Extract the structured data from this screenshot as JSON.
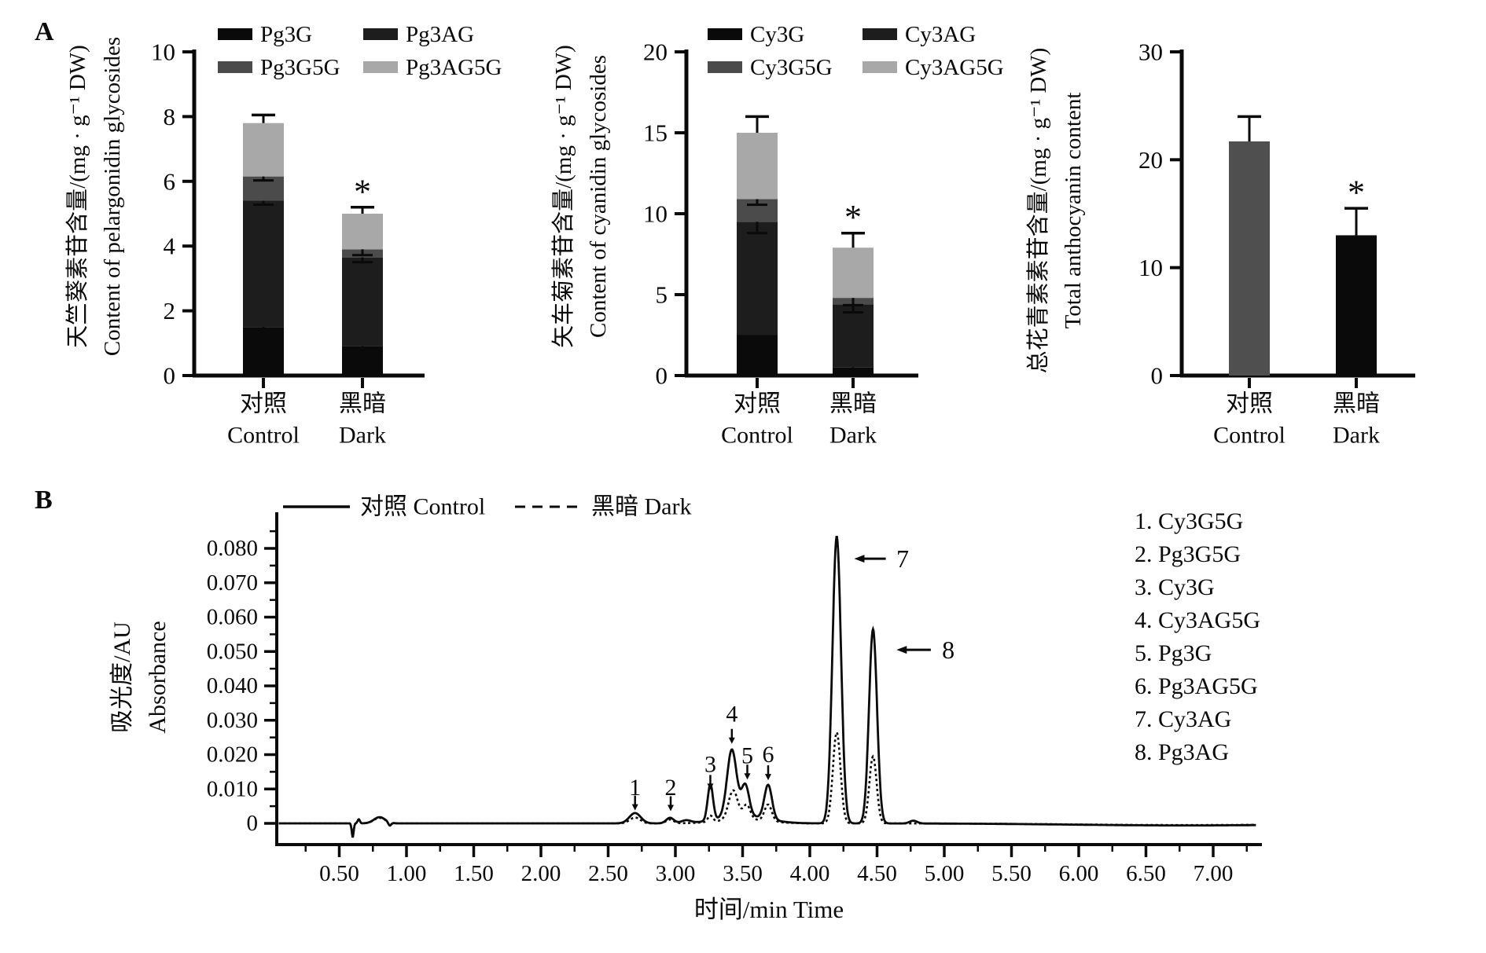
{
  "panel_a": {
    "label": "A"
  },
  "panel_b": {
    "label": "B"
  },
  "chart_data": [
    {
      "id": "pelargonidin-glycosides",
      "type": "bar",
      "stacked": true,
      "ylabel_zh": "天竺葵素苷含量/(mg · g⁻¹ DW)",
      "ylabel_en": "Content of pelargonidin glycosides",
      "categories": [
        {
          "zh": "对照",
          "en": "Control"
        },
        {
          "zh": "黑暗",
          "en": "Dark"
        }
      ],
      "ylim": [
        0,
        10
      ],
      "yticks": [
        0,
        2,
        4,
        6,
        8,
        10
      ],
      "legend_position": "top",
      "series": [
        {
          "name": "Pg3G",
          "color": "#0a0a0a",
          "values": [
            1.5,
            0.9
          ],
          "errors": [
            0.1,
            0.15
          ]
        },
        {
          "name": "Pg3AG",
          "color": "#1d1d1d",
          "values": [
            3.9,
            2.75
          ],
          "errors": [
            0.12,
            0.15
          ]
        },
        {
          "name": "Pg3G5G",
          "color": "#4b4b4b",
          "values": [
            0.75,
            0.25
          ],
          "errors": [
            0.12,
            0.18
          ]
        },
        {
          "name": "Pg3AG5G",
          "color": "#a8a8a8",
          "values": [
            1.65,
            1.1
          ],
          "errors": [
            0.25,
            0.2
          ]
        }
      ],
      "significance": [
        "",
        "*"
      ]
    },
    {
      "id": "cyanidin-glycosides",
      "type": "bar",
      "stacked": true,
      "ylabel_zh": "矢车菊素苷含量/(mg · g⁻¹ DW)",
      "ylabel_en": "Content of cyanidin glycosides",
      "categories": [
        {
          "zh": "对照",
          "en": "Control"
        },
        {
          "zh": "黑暗",
          "en": "Dark"
        }
      ],
      "ylim": [
        0,
        20
      ],
      "yticks": [
        0,
        5,
        10,
        15,
        20
      ],
      "legend_position": "top",
      "series": [
        {
          "name": "Cy3G",
          "color": "#0a0a0a",
          "values": [
            2.5,
            0.5
          ],
          "errors": [
            0.15,
            0.1
          ]
        },
        {
          "name": "Cy3AG",
          "color": "#1d1d1d",
          "values": [
            7.0,
            3.9
          ],
          "errors": [
            0.7,
            0.5
          ]
        },
        {
          "name": "Cy3G5G",
          "color": "#4b4b4b",
          "values": [
            1.4,
            0.4
          ],
          "errors": [
            0.35,
            0.45
          ]
        },
        {
          "name": "Cy3AG5G",
          "color": "#a8a8a8",
          "values": [
            4.1,
            3.1
          ],
          "errors": [
            1.0,
            0.9
          ]
        }
      ],
      "significance": [
        "",
        "*"
      ]
    },
    {
      "id": "total-anthocyanin",
      "type": "bar",
      "stacked": false,
      "ylabel_zh": "总花青素素苷含量/(mg · g⁻¹ DW)",
      "ylabel_en": "Total anthocyanin content",
      "categories": [
        {
          "zh": "对照",
          "en": "Control"
        },
        {
          "zh": "黑暗",
          "en": "Dark"
        }
      ],
      "ylim": [
        0,
        30
      ],
      "yticks": [
        0,
        10,
        20,
        30
      ],
      "legend_position": "none",
      "series": [
        {
          "name": "Total anthocyanin",
          "colors": [
            "#4f4f4f",
            "#0a0a0a"
          ],
          "values": [
            21.7,
            13.0
          ],
          "errors": [
            2.3,
            2.5
          ]
        }
      ],
      "significance": [
        "",
        "*"
      ]
    },
    {
      "id": "hplc-chromatogram",
      "type": "line",
      "xlabel": "时间/min Time",
      "ylabel_zh": "吸光度/AU",
      "ylabel_en": "Absorbance",
      "xlim": [
        0,
        7.35
      ],
      "ylim": [
        -0.005,
        0.09
      ],
      "xticks": [
        "0.50",
        "1.00",
        "1.50",
        "2.00",
        "2.50",
        "3.00",
        "3.50",
        "4.00",
        "4.50",
        "5.00",
        "5.50",
        "6.00",
        "6.50",
        "7.00"
      ],
      "ytick_labels": [
        "0",
        "0.010",
        "0.020",
        "0.030",
        "0.040",
        "0.050",
        "0.060",
        "0.070",
        "0.080"
      ],
      "legend": [
        {
          "label": "对照 Control",
          "style": "solid"
        },
        {
          "label": "黑暗 Dark",
          "style": "dashed"
        }
      ],
      "series": [
        {
          "name": "黑暗 Dark",
          "style": "dashed",
          "peaks": [
            [
              0.6,
              -0.0038,
              0.01
            ],
            [
              0.645,
              0.0011,
              0.012
            ],
            [
              0.8,
              0.0016,
              0.06
            ],
            [
              0.875,
              -0.0009,
              0.015
            ],
            [
              2.7,
              0.0017,
              0.055
            ],
            [
              2.96,
              0.0011,
              0.04
            ],
            [
              3.5,
              0.0012,
              0.25
            ],
            [
              3.26,
              0.0018,
              0.026
            ],
            [
              3.43,
              0.0085,
              0.048
            ],
            [
              3.53,
              0.0042,
              0.038
            ],
            [
              3.69,
              0.0048,
              0.038
            ],
            [
              4.2,
              0.0265,
              0.04
            ],
            [
              4.47,
              0.0195,
              0.038
            ],
            [
              6.8,
              -0.0005,
              1.2
            ]
          ]
        },
        {
          "name": "对照 Control",
          "style": "solid",
          "peaks": [
            [
              0.6,
              -0.004,
              0.01
            ],
            [
              0.645,
              0.0012,
              0.012
            ],
            [
              0.8,
              0.0018,
              0.06
            ],
            [
              0.875,
              -0.001,
              0.015
            ],
            [
              2.7,
              0.003,
              0.06
            ],
            [
              2.96,
              0.0016,
              0.04
            ],
            [
              3.08,
              0.0008,
              0.05
            ],
            [
              3.5,
              0.0022,
              0.25
            ],
            [
              3.26,
              0.0105,
              0.028
            ],
            [
              3.42,
              0.0195,
              0.05
            ],
            [
              3.52,
              0.009,
              0.04
            ],
            [
              3.69,
              0.01,
              0.04
            ],
            [
              4.2,
              0.0835,
              0.045
            ],
            [
              4.47,
              0.0565,
              0.042
            ],
            [
              4.77,
              0.0008,
              0.04
            ],
            [
              6.8,
              -0.0006,
              1.2
            ]
          ]
        }
      ],
      "peak_markers": [
        {
          "n": "1",
          "t": 2.7,
          "label_v": 0.0104,
          "tip_v": 0.0042
        },
        {
          "n": "2",
          "t": 2.965,
          "label_v": 0.0104,
          "tip_v": 0.004
        },
        {
          "n": "3",
          "t": 3.26,
          "label_v": 0.0172,
          "tip_v": 0.0102
        },
        {
          "n": "4",
          "t": 3.42,
          "label_v": 0.0318,
          "tip_v": 0.0236
        },
        {
          "n": "5",
          "t": 3.535,
          "label_v": 0.0197,
          "tip_v": 0.0132
        },
        {
          "n": "6",
          "t": 3.69,
          "label_v": 0.02,
          "tip_v": 0.013
        }
      ],
      "arrow_markers": [
        {
          "n": "7",
          "head_t": 4.33,
          "tail_t": 4.565,
          "label_t": 4.69,
          "v": 0.077
        },
        {
          "n": "8",
          "head_t": 4.645,
          "tail_t": 4.9,
          "label_t": 5.03,
          "v": 0.0505
        }
      ],
      "peak_list": [
        "1. Cy3G5G",
        "2. Pg3G5G",
        "3. Cy3G",
        "4. Cy3AG5G",
        "5. Pg3G",
        "6. Pg3AG5G",
        "7. Cy3AG",
        "8. Pg3AG"
      ]
    }
  ]
}
